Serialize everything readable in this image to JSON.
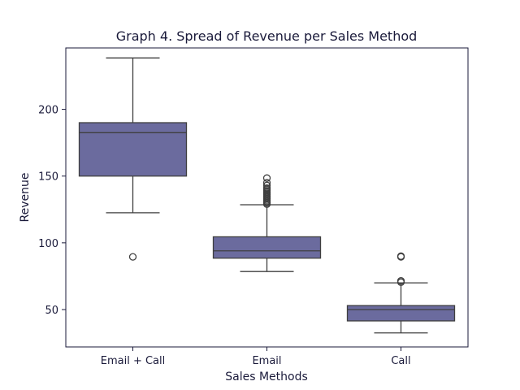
{
  "chart_data": {
    "type": "box",
    "title": "Graph 4. Spread of Revenue per Sales Method",
    "xlabel": "Sales Methods",
    "ylabel": "Revenue",
    "categories": [
      "Email + Call",
      "Email",
      "Call"
    ],
    "ylim": [
      22,
      246
    ],
    "yticks": [
      50,
      100,
      150,
      200
    ],
    "box_color": "#6b6b9e",
    "line_color": "#3f3f3f",
    "boxes": [
      {
        "category": "Email + Call",
        "whisker_low": 122.5,
        "q1": 150,
        "median": 182.5,
        "q3": 190,
        "whisker_high": 238.5,
        "outliers": [
          89.5
        ]
      },
      {
        "category": "Email",
        "whisker_low": 78.5,
        "q1": 88.5,
        "median": 94,
        "q3": 104.5,
        "whisker_high": 128.5,
        "outliers": [
          129,
          130,
          131,
          132,
          133,
          134,
          135,
          136,
          137,
          138,
          139,
          140,
          141,
          143,
          145,
          148.5
        ]
      },
      {
        "category": "Call",
        "whisker_low": 32.5,
        "q1": 41.5,
        "median": 50,
        "q3": 53,
        "whisker_high": 70,
        "outliers": [
          70.5,
          71.5,
          89.5,
          90
        ]
      }
    ]
  }
}
